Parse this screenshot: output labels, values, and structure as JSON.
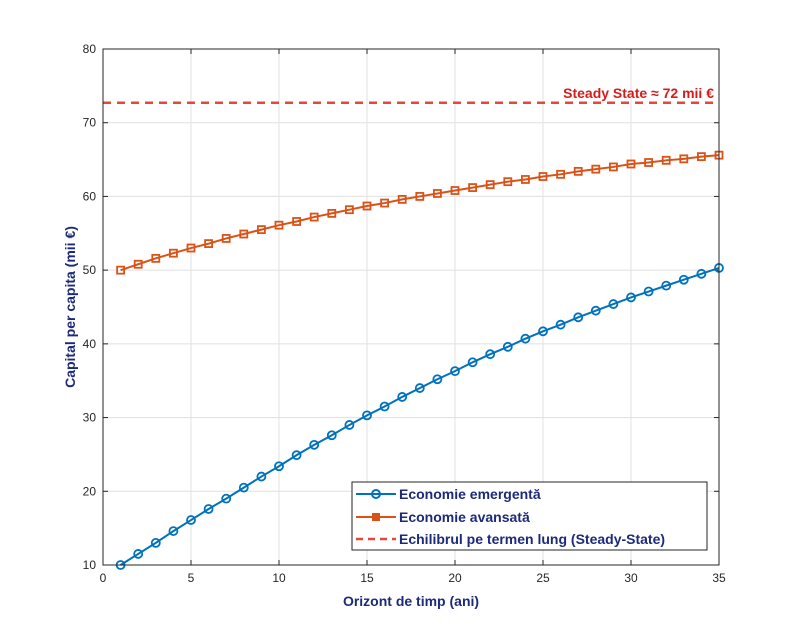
{
  "chart_data": {
    "type": "line",
    "title": "",
    "xlabel": "Orizont de timp (ani)",
    "ylabel": "Capital per capita (mii €)",
    "xlim": [
      0,
      35
    ],
    "ylim": [
      10,
      80
    ],
    "xticks": [
      0,
      5,
      10,
      15,
      20,
      25,
      30,
      35
    ],
    "yticks": [
      10,
      20,
      30,
      40,
      50,
      60,
      70,
      80
    ],
    "grid": true,
    "legend_position": "bottom-right",
    "x": [
      1,
      2,
      3,
      4,
      5,
      6,
      7,
      8,
      9,
      10,
      11,
      12,
      13,
      14,
      15,
      16,
      17,
      18,
      19,
      20,
      21,
      22,
      23,
      24,
      25,
      26,
      27,
      28,
      29,
      30,
      31,
      32,
      33,
      34,
      35
    ],
    "series": [
      {
        "name": "Economie emergentă",
        "color": "#0072bd",
        "marker": "circle",
        "values": [
          10.0,
          11.5,
          13.0,
          14.6,
          16.1,
          17.6,
          19.0,
          20.5,
          22.0,
          23.4,
          24.9,
          26.3,
          27.6,
          29.0,
          30.3,
          31.5,
          32.8,
          34.0,
          35.2,
          36.3,
          37.5,
          38.6,
          39.6,
          40.7,
          41.7,
          42.6,
          43.6,
          44.5,
          45.4,
          46.3,
          47.1,
          47.9,
          48.7,
          49.5,
          50.3
        ]
      },
      {
        "name": "Economie avansată",
        "color": "#d95319",
        "marker": "square",
        "values": [
          50.0,
          50.8,
          51.6,
          52.3,
          53.0,
          53.6,
          54.3,
          54.9,
          55.5,
          56.1,
          56.6,
          57.2,
          57.7,
          58.2,
          58.7,
          59.1,
          59.6,
          60.0,
          60.4,
          60.8,
          61.2,
          61.6,
          62.0,
          62.3,
          62.7,
          63.0,
          63.4,
          63.7,
          64.0,
          64.4,
          64.6,
          64.9,
          65.1,
          65.4,
          65.6
        ]
      }
    ],
    "reference_line": {
      "name": "Echilibrul pe termen lung (Steady-State)",
      "value": 72.7,
      "color": "#e8453c",
      "style": "dashed"
    },
    "annotation": "Steady State ≈ 72 mii €",
    "annotation_color": "#d41c1c"
  }
}
